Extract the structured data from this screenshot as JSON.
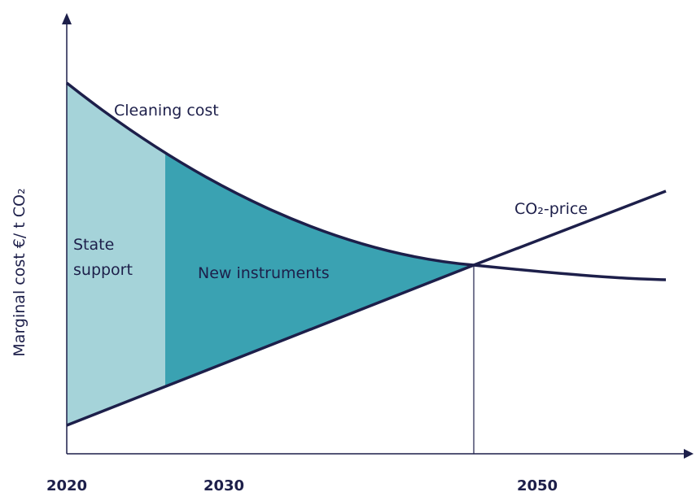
{
  "axis": {
    "y_label": "Marginal cost €/ t CO₂",
    "x_labels": [
      "2020",
      "2030",
      "2050"
    ]
  },
  "curves": {
    "cleaning_cost": "Cleaning cost",
    "co2_price": "CO₂-price"
  },
  "regions": {
    "state_support": "State\nsupport",
    "new_instruments": "New instruments"
  }
}
